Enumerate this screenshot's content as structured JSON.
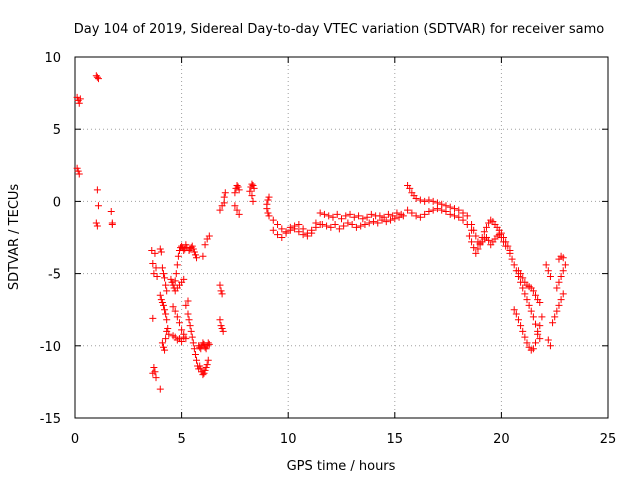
{
  "chart_data": {
    "type": "scatter",
    "title": "Day 104 of 2019, Sidereal Day-to-day VTEC variation (SDTVAR) for receiver samo",
    "xlabel": "GPS time / hours",
    "ylabel": "SDTVAR / TECUs",
    "xlim": [
      0,
      25
    ],
    "ylim": [
      -15,
      10
    ],
    "xticks": [
      "0",
      "5",
      "10",
      "15",
      "20",
      "25"
    ],
    "yticks": [
      "10",
      "5",
      "0",
      "-5",
      "-10",
      "-15"
    ],
    "xtick_values": [
      0,
      5,
      10,
      15,
      20,
      25
    ],
    "ytick_values": [
      10,
      5,
      0,
      -5,
      -10,
      -15
    ],
    "grid": true,
    "marker": "+",
    "color": "#ff0000",
    "series": [
      {
        "name": "SDTVAR",
        "x": [
          0.1,
          0.15,
          0.2,
          0.25,
          0.1,
          0.15,
          0.2,
          1.0,
          1.05,
          1.1,
          1.05,
          1.1,
          1.0,
          1.05,
          1.7,
          1.75,
          1.75,
          3.6,
          3.65,
          3.7,
          3.75,
          3.8,
          3.85,
          3.65,
          3.7,
          3.75,
          3.8,
          3.65,
          4.0,
          4.05,
          4.1,
          4.15,
          4.2,
          4.25,
          4.3,
          4.0,
          4.05,
          4.1,
          4.15,
          4.2,
          4.25,
          4.3,
          4.35,
          4.4,
          4.1,
          4.15,
          4.2,
          4.25,
          4.3,
          4.0,
          4.5,
          4.55,
          4.6,
          4.65,
          4.7,
          4.75,
          4.8,
          4.85,
          4.9,
          4.95,
          5.0,
          5.05,
          5.1,
          5.15,
          5.2,
          5.25,
          4.6,
          4.7,
          4.8,
          4.9,
          5.0,
          5.1,
          5.2,
          5.3,
          4.6,
          4.7,
          4.8,
          4.9,
          5.0,
          5.1,
          5.2,
          4.7,
          4.8,
          4.9,
          5.0,
          5.1,
          5.3,
          5.35,
          5.4,
          5.45,
          5.5,
          5.55,
          5.6,
          5.65,
          5.7,
          5.75,
          5.8,
          5.35,
          5.4,
          5.45,
          5.5,
          5.55,
          5.6,
          5.65,
          5.7,
          5.8,
          5.85,
          5.9,
          5.95,
          6.0,
          6.05,
          6.1,
          6.15,
          6.2,
          6.25,
          6.3,
          5.85,
          5.9,
          5.95,
          6.0,
          6.05,
          6.1,
          6.15,
          6.2,
          6.25,
          6.0,
          6.1,
          6.2,
          6.3,
          6.8,
          6.85,
          6.9,
          6.8,
          6.85,
          6.9,
          6.95,
          6.8,
          6.9,
          7.0,
          7.0,
          7.05,
          7.5,
          7.55,
          7.6,
          7.65,
          7.7,
          7.5,
          7.6,
          7.7,
          8.2,
          8.25,
          8.3,
          8.35,
          8.4,
          8.3,
          8.35,
          9.0,
          9.05,
          9.1,
          9.0,
          9.05,
          9.1,
          9.3,
          9.5,
          9.7,
          9.9,
          10.1,
          10.3,
          10.5,
          10.7,
          10.9,
          11.1,
          11.3,
          9.3,
          9.5,
          9.7,
          9.9,
          10.1,
          10.3,
          10.5,
          10.7,
          10.9,
          11.1,
          11.3,
          11.5,
          11.5,
          11.7,
          11.9,
          12.1,
          12.3,
          12.5,
          12.7,
          12.9,
          13.1,
          13.3,
          13.5,
          13.7,
          13.9,
          14.1,
          14.3,
          14.5,
          14.7,
          14.9,
          15.1,
          15.3,
          11.6,
          11.8,
          12.0,
          12.2,
          12.4,
          12.6,
          12.8,
          13.0,
          13.2,
          13.4,
          13.6,
          13.8,
          14.0,
          14.2,
          14.4,
          14.6,
          14.8,
          15.0,
          15.2,
          15.4,
          15.6,
          15.7,
          15.8,
          15.9,
          16.0,
          16.2,
          16.4,
          16.6,
          16.8,
          17.0,
          17.2,
          17.4,
          17.6,
          17.8,
          18.0,
          18.2,
          18.4,
          15.6,
          15.8,
          16.0,
          16.2,
          16.4,
          16.6,
          16.8,
          17.0,
          17.2,
          17.4,
          17.6,
          17.8,
          18.0,
          18.2,
          18.4,
          18.6,
          18.5,
          18.6,
          18.7,
          18.8,
          18.9,
          19.0,
          19.1,
          19.2,
          19.3,
          19.4,
          19.5,
          19.6,
          19.7,
          19.8,
          19.9,
          20.0,
          20.1,
          20.2,
          20.3,
          20.4,
          18.6,
          18.7,
          18.8,
          18.9,
          19.0,
          19.1,
          19.2,
          19.3,
          19.4,
          19.5,
          19.6,
          19.7,
          19.8,
          19.9,
          20.0,
          20.1,
          20.2,
          20.4,
          20.5,
          20.6,
          20.7,
          20.8,
          20.9,
          21.0,
          21.1,
          21.2,
          21.3,
          21.4,
          21.5,
          21.6,
          21.7,
          21.8,
          20.6,
          20.7,
          20.8,
          20.9,
          21.0,
          21.1,
          21.2,
          21.3,
          21.4,
          21.5,
          21.6,
          21.7,
          21.8,
          21.9,
          20.8,
          20.9,
          21.0,
          21.1,
          21.2,
          21.3,
          21.4,
          21.5,
          21.6,
          21.7,
          21.8,
          22.1,
          22.2,
          22.3,
          22.2,
          22.3,
          22.4,
          22.5,
          22.6,
          22.7,
          22.8,
          22.9,
          22.6,
          22.7,
          22.8,
          22.9,
          23.0,
          22.7,
          22.8,
          22.9
        ],
        "y": [
          7.2,
          7.0,
          6.8,
          7.1,
          2.3,
          2.1,
          1.9,
          8.7,
          8.6,
          8.5,
          0.8,
          -0.3,
          -1.5,
          -1.7,
          -0.7,
          -1.5,
          -1.6,
          -3.4,
          -4.3,
          -5.0,
          -3.6,
          -4.6,
          -5.2,
          -8.1,
          -11.5,
          -11.8,
          -12.2,
          -11.9,
          -3.3,
          -3.5,
          -4.6,
          -5.0,
          -5.3,
          -5.8,
          -6.2,
          -6.5,
          -6.8,
          -7.0,
          -7.2,
          -7.5,
          -7.8,
          -8.2,
          -8.8,
          -9.2,
          -9.8,
          -10.1,
          -10.3,
          -9.5,
          -9.0,
          -13.0,
          -5.4,
          -5.6,
          -5.8,
          -6.0,
          -5.5,
          -5.0,
          -4.4,
          -3.8,
          -3.4,
          -3.2,
          -3.1,
          -3.2,
          -3.4,
          -3.3,
          -3.0,
          -3.2,
          -9.3,
          -9.4,
          -9.6,
          -9.5,
          -9.7,
          -9.4,
          -7.2,
          -6.9,
          -7.3,
          -7.6,
          -8.0,
          -8.4,
          -8.9,
          -9.2,
          -9.5,
          -6.2,
          -6.0,
          -5.8,
          -5.6,
          -5.4,
          -7.8,
          -8.2,
          -8.6,
          -9.0,
          -9.4,
          -9.8,
          -10.2,
          -10.6,
          -11.0,
          -11.4,
          -11.6,
          -3.4,
          -3.3,
          -3.2,
          -3.1,
          -3.3,
          -3.5,
          -3.7,
          -3.9,
          -10.0,
          -10.1,
          -10.2,
          -10.0,
          -9.8,
          -9.9,
          -10.1,
          -10.2,
          -10.0,
          -9.8,
          -9.9,
          -11.4,
          -11.6,
          -11.8,
          -12.0,
          -11.9,
          -11.7,
          -11.5,
          -11.3,
          -11.0,
          -3.8,
          -3.0,
          -2.6,
          -2.4,
          -5.8,
          -6.2,
          -6.4,
          -8.2,
          -8.6,
          -8.8,
          -9.0,
          -0.6,
          -0.3,
          -0.1,
          0.3,
          0.6,
          0.6,
          0.9,
          1.1,
          1.0,
          0.8,
          -0.3,
          -0.6,
          -0.9,
          0.7,
          1.0,
          1.2,
          1.1,
          0.9,
          0.4,
          0.0,
          -0.2,
          0.1,
          0.3,
          -0.5,
          -0.8,
          -1.0,
          -1.3,
          -1.6,
          -1.9,
          -2.1,
          -1.8,
          -1.7,
          -1.6,
          -1.9,
          -2.2,
          -2.0,
          -1.5,
          -2.0,
          -2.3,
          -2.5,
          -2.2,
          -2.0,
          -1.9,
          -2.1,
          -2.3,
          -2.4,
          -2.2,
          -1.8,
          -1.6,
          -0.8,
          -0.9,
          -1.0,
          -1.1,
          -0.9,
          -1.2,
          -1.0,
          -0.9,
          -1.1,
          -1.0,
          -1.2,
          -1.1,
          -0.9,
          -1.0,
          -1.0,
          -1.1,
          -0.9,
          -1.0,
          -0.8,
          -0.9,
          -1.6,
          -1.7,
          -1.8,
          -1.6,
          -1.9,
          -1.7,
          -1.5,
          -1.6,
          -1.8,
          -1.7,
          -1.6,
          -1.5,
          -1.4,
          -1.5,
          -1.3,
          -1.4,
          -1.3,
          -1.2,
          -1.1,
          -1.0,
          1.1,
          0.9,
          0.6,
          0.4,
          0.2,
          0.1,
          0.0,
          0.1,
          0.0,
          -0.1,
          -0.2,
          -0.3,
          -0.4,
          -0.5,
          -0.6,
          -0.8,
          -1.0,
          -0.6,
          -0.8,
          -1.0,
          -1.1,
          -0.9,
          -0.7,
          -0.6,
          -0.5,
          -0.6,
          -0.7,
          -0.9,
          -1.0,
          -1.1,
          -1.3,
          -1.6,
          -2.0,
          -2.4,
          -2.8,
          -3.2,
          -3.6,
          -3.3,
          -2.9,
          -2.5,
          -2.1,
          -1.8,
          -1.5,
          -1.3,
          -1.4,
          -1.6,
          -1.8,
          -2.0,
          -2.2,
          -2.5,
          -2.8,
          -3.1,
          -3.4,
          -1.6,
          -2.0,
          -2.4,
          -2.8,
          -3.0,
          -2.8,
          -2.6,
          -2.5,
          -2.7,
          -3.0,
          -2.8,
          -2.6,
          -2.4,
          -2.3,
          -2.5,
          -2.8,
          -3.1,
          -3.6,
          -4.0,
          -4.4,
          -4.8,
          -5.2,
          -5.6,
          -6.0,
          -6.4,
          -6.8,
          -7.2,
          -7.6,
          -8.0,
          -8.5,
          -9.0,
          -9.5,
          -7.5,
          -7.8,
          -8.2,
          -8.6,
          -9.0,
          -9.4,
          -9.8,
          -10.1,
          -10.3,
          -10.2,
          -9.8,
          -9.2,
          -8.6,
          -8.0,
          -4.8,
          -5.0,
          -5.3,
          -5.6,
          -5.8,
          -5.9,
          -6.0,
          -6.2,
          -6.5,
          -6.8,
          -7.0,
          -4.4,
          -4.8,
          -5.2,
          -9.6,
          -10.0,
          -8.4,
          -8.0,
          -7.6,
          -7.2,
          -6.8,
          -6.4,
          -6.0,
          -5.6,
          -5.2,
          -4.8,
          -4.4,
          -4.0,
          -3.8,
          -3.9
        ],
        "color": "#ff0000"
      }
    ]
  }
}
